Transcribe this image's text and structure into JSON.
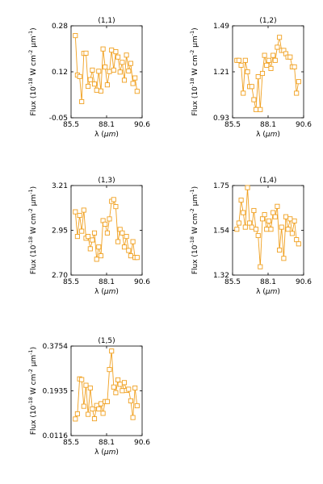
{
  "colors": {
    "series": "#f0a020",
    "frame": "#000000",
    "background": "#ffffff"
  },
  "marker": "open-square",
  "chart_data": [
    {
      "type": "line",
      "title": "(1,1)",
      "xlabel": "λ (μm)",
      "ylabel": "Flux (10^-18 W cm^-2 μm^-1)",
      "xlim": [
        85.6,
        90.6
      ],
      "ylim": [
        -0.05,
        0.28
      ],
      "xticks": [
        "85.5",
        "88.1",
        "90.6"
      ],
      "yticks": [
        "-0.05",
        "0.12",
        "0.28"
      ],
      "x": [
        85.9,
        86.05,
        86.2,
        86.35,
        86.5,
        86.65,
        86.8,
        86.95,
        87.1,
        87.25,
        87.4,
        87.55,
        87.7,
        87.85,
        88.0,
        88.15,
        88.3,
        88.45,
        88.6,
        88.75,
        88.9,
        89.05,
        89.2,
        89.35,
        89.5,
        89.65,
        89.8,
        89.95,
        90.1,
        90.25
      ],
      "y": [
        0.245,
        0.103,
        0.098,
        0.008,
        0.181,
        0.182,
        0.063,
        0.087,
        0.121,
        0.071,
        0.049,
        0.117,
        0.046,
        0.197,
        0.132,
        0.068,
        0.116,
        0.193,
        0.121,
        0.187,
        0.168,
        0.114,
        0.149,
        0.085,
        0.175,
        0.118,
        0.145,
        0.073,
        0.093,
        0.045
      ]
    },
    {
      "type": "line",
      "title": "(1,2)",
      "xlabel": "λ (μm)",
      "ylabel": "Flux (10^-18 W cm^-2 μm^-1)",
      "xlim": [
        85.6,
        90.6
      ],
      "ylim": [
        0.93,
        1.49
      ],
      "xticks": [
        "85.5",
        "88.1",
        "90.6"
      ],
      "yticks": [
        "0.93",
        "1.21",
        "1.49"
      ],
      "x": [
        85.9,
        86.05,
        86.2,
        86.35,
        86.5,
        86.65,
        86.8,
        86.95,
        87.1,
        87.25,
        87.4,
        87.55,
        87.7,
        87.85,
        88.0,
        88.15,
        88.3,
        88.45,
        88.6,
        88.75,
        88.9,
        89.05,
        89.2,
        89.35,
        89.5,
        89.65,
        89.8,
        89.95,
        90.1,
        90.25
      ],
      "y": [
        1.28,
        1.28,
        1.25,
        1.08,
        1.28,
        1.21,
        1.12,
        1.12,
        1.04,
        0.98,
        1.18,
        0.98,
        1.2,
        1.31,
        1.25,
        1.28,
        1.23,
        1.31,
        1.28,
        1.36,
        1.42,
        1.34,
        1.34,
        1.32,
        1.3,
        1.3,
        1.24,
        1.24,
        1.08,
        1.15
      ]
    },
    {
      "type": "line",
      "title": "(1,3)",
      "xlabel": "λ (μm)",
      "ylabel": "Flux (10^-18 W cm^-2 μm^-1)",
      "xlim": [
        85.6,
        90.6
      ],
      "ylim": [
        2.7,
        3.21
      ],
      "xticks": [
        "85.5",
        "88.1",
        "90.6"
      ],
      "yticks": [
        "2.70",
        "2.95",
        "3.21"
      ],
      "x": [
        85.9,
        86.05,
        86.2,
        86.35,
        86.5,
        86.65,
        86.8,
        86.95,
        87.1,
        87.25,
        87.4,
        87.55,
        87.7,
        87.85,
        88.0,
        88.15,
        88.3,
        88.45,
        88.6,
        88.75,
        88.9,
        89.05,
        89.2,
        89.35,
        89.5,
        89.65,
        89.8,
        89.95,
        90.1,
        90.25
      ],
      "y": [
        3.06,
        2.92,
        3.04,
        2.95,
        3.07,
        2.91,
        2.92,
        2.85,
        2.9,
        2.94,
        2.79,
        2.86,
        2.81,
        3.01,
        2.99,
        2.94,
        3.02,
        3.12,
        3.13,
        3.09,
        2.89,
        2.96,
        2.94,
        2.86,
        2.92,
        2.84,
        2.81,
        2.89,
        2.8,
        2.8
      ]
    },
    {
      "type": "line",
      "title": "(1,4)",
      "xlabel": "λ (μm)",
      "ylabel": "Flux (10^-18 W cm^-2 μm^-1)",
      "xlim": [
        85.6,
        90.6
      ],
      "ylim": [
        1.32,
        1.75
      ],
      "xticks": [
        "85.5",
        "88.1",
        "90.6"
      ],
      "yticks": [
        "1.32",
        "1.54",
        "1.75"
      ],
      "x": [
        85.9,
        86.05,
        86.2,
        86.35,
        86.5,
        86.65,
        86.8,
        86.95,
        87.1,
        87.25,
        87.4,
        87.55,
        87.7,
        87.85,
        88.0,
        88.15,
        88.3,
        88.45,
        88.6,
        88.75,
        88.9,
        89.05,
        89.2,
        89.35,
        89.5,
        89.65,
        89.8,
        89.95,
        90.1,
        90.25
      ],
      "y": [
        1.54,
        1.57,
        1.68,
        1.62,
        1.55,
        1.74,
        1.57,
        1.55,
        1.63,
        1.54,
        1.51,
        1.36,
        1.59,
        1.61,
        1.54,
        1.58,
        1.54,
        1.62,
        1.6,
        1.65,
        1.44,
        1.55,
        1.4,
        1.6,
        1.54,
        1.59,
        1.52,
        1.58,
        1.49,
        1.47
      ]
    },
    {
      "type": "line",
      "title": "(1,5)",
      "xlabel": "λ (μm)",
      "ylabel": "Flux (10^-18 W cm^-2 μm^-1)",
      "xlim": [
        85.6,
        90.6
      ],
      "ylim": [
        0.0116,
        0.3754
      ],
      "xticks": [
        "85.5",
        "88.1",
        "90.6"
      ],
      "yticks": [
        "0.0116",
        "0.1935",
        "0.3754"
      ],
      "x": [
        85.9,
        86.05,
        86.2,
        86.35,
        86.5,
        86.65,
        86.8,
        86.95,
        87.1,
        87.25,
        87.4,
        87.55,
        87.7,
        87.85,
        88.0,
        88.15,
        88.3,
        88.45,
        88.6,
        88.75,
        88.9,
        89.05,
        89.2,
        89.35,
        89.5,
        89.65,
        89.8,
        89.95,
        90.1,
        90.25
      ],
      "y": [
        0.079,
        0.1,
        0.242,
        0.239,
        0.131,
        0.216,
        0.098,
        0.205,
        0.12,
        0.08,
        0.134,
        0.12,
        0.141,
        0.102,
        0.15,
        0.15,
        0.28,
        0.355,
        0.209,
        0.186,
        0.238,
        0.22,
        0.194,
        0.227,
        0.195,
        0.2,
        0.153,
        0.085,
        0.205,
        0.133
      ]
    }
  ]
}
